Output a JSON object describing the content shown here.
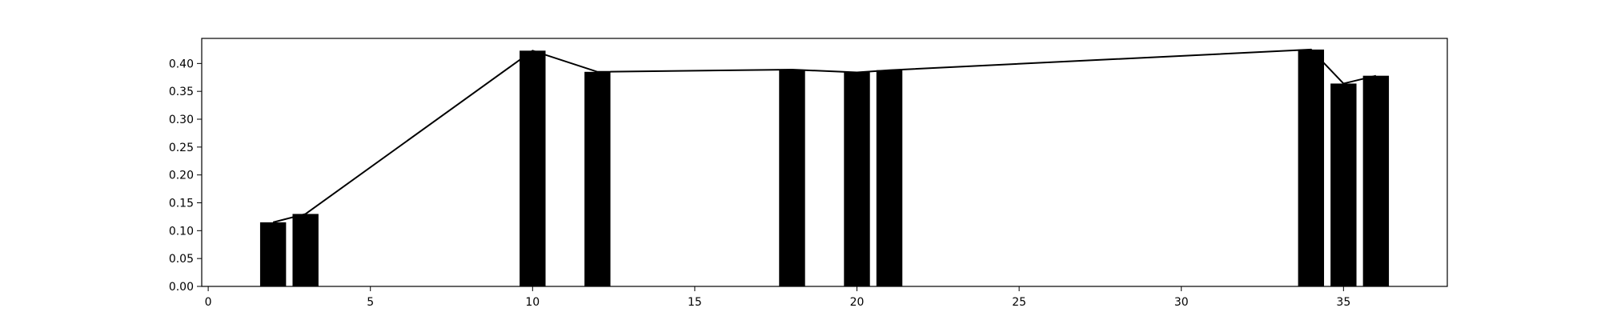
{
  "chart_data": {
    "type": "bar",
    "title": "",
    "xlabel": "",
    "ylabel": "",
    "xlim": [
      -0.2,
      38.2
    ],
    "ylim": [
      0,
      0.445
    ],
    "xticks": [
      0,
      5,
      10,
      15,
      20,
      25,
      30,
      35
    ],
    "yticks": [
      0.0,
      0.05,
      0.1,
      0.15,
      0.2,
      0.25,
      0.3,
      0.35,
      0.4
    ],
    "xtick_labels": [
      "0",
      "5",
      "10",
      "15",
      "20",
      "25",
      "30",
      "35"
    ],
    "ytick_labels": [
      "0.00",
      "0.05",
      "0.10",
      "0.15",
      "0.20",
      "0.25",
      "0.30",
      "0.35",
      "0.40"
    ],
    "grid": false,
    "bar_width": 0.8,
    "colors": {
      "bar": "#000000",
      "line": "#000000",
      "axes": "#000000"
    },
    "series": [
      {
        "type": "bar",
        "x": [
          2,
          3,
          10,
          12,
          18,
          20,
          21,
          34,
          35,
          36
        ],
        "values": [
          0.115,
          0.13,
          0.423,
          0.385,
          0.389,
          0.384,
          0.388,
          0.425,
          0.364,
          0.378
        ]
      },
      {
        "type": "line",
        "x": [
          2,
          3,
          10,
          12,
          18,
          20,
          21,
          34,
          35,
          36
        ],
        "values": [
          0.115,
          0.13,
          0.423,
          0.385,
          0.389,
          0.384,
          0.388,
          0.425,
          0.364,
          0.378
        ]
      }
    ]
  }
}
